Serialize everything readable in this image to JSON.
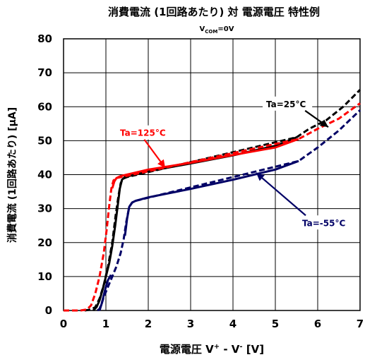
{
  "chart_data": {
    "type": "line",
    "title": "消費電流 (1回路あたり) 対 電源電圧 特性例",
    "subtitle": {
      "main": "V",
      "sub": "COM",
      "rest": "=0V"
    },
    "xlabel": {
      "prefix": "電源電圧 V",
      "sup1": "+",
      "mid": " - V",
      "sup2": "-",
      "suffix": " [V]"
    },
    "ylabel": "消費電流 (1回路あたり) [μA]",
    "xlim": [
      0,
      7
    ],
    "ylim": [
      0,
      80
    ],
    "xticks": [
      "0",
      "1",
      "2",
      "3",
      "4",
      "5",
      "6",
      "7"
    ],
    "yticks": [
      "0",
      "10",
      "20",
      "30",
      "40",
      "50",
      "60",
      "70",
      "80"
    ],
    "grid": true,
    "colors": {
      "ta25": "#000000",
      "ta125": "#ff0000",
      "ta_minus55": "#000066"
    },
    "annotations": [
      {
        "text": "Ta=125°C",
        "color": "#ff0000",
        "box_at": [
          1.25,
          54.5
        ],
        "arrow_to": [
          2.4,
          42
        ]
      },
      {
        "text": "Ta=25°C",
        "color": "#000000",
        "box_at": [
          4.7,
          63
        ],
        "arrow_to": [
          6.25,
          54
        ]
      },
      {
        "text": "Ta=-55°C",
        "color": "#000066",
        "box_at": [
          5.55,
          28
        ],
        "arrow_to": [
          4.55,
          40.5
        ]
      }
    ],
    "series": [
      {
        "key": "ta25",
        "solid": [
          [
            0.7,
            0
          ],
          [
            0.78,
            1
          ],
          [
            0.85,
            3
          ],
          [
            0.92,
            6
          ],
          [
            1.0,
            10
          ],
          [
            1.08,
            14
          ],
          [
            1.15,
            19
          ],
          [
            1.22,
            25
          ],
          [
            1.28,
            31
          ],
          [
            1.33,
            36
          ],
          [
            1.38,
            38.5
          ],
          [
            1.45,
            39.3
          ],
          [
            2.0,
            41.0
          ],
          [
            3.0,
            43.3
          ],
          [
            4.0,
            45.7
          ],
          [
            5.0,
            48.5
          ],
          [
            5.5,
            51
          ]
        ],
        "dashed": [
          [
            0.5,
            0
          ],
          [
            0.65,
            0.3
          ],
          [
            0.75,
            1
          ],
          [
            0.85,
            3.5
          ],
          [
            0.95,
            7.5
          ],
          [
            1.05,
            13
          ],
          [
            1.15,
            20
          ],
          [
            1.23,
            28
          ],
          [
            1.3,
            34
          ],
          [
            1.35,
            37.5
          ],
          [
            1.4,
            38.8
          ],
          [
            1.5,
            39.3
          ],
          [
            5.5,
            51
          ],
          [
            5.8,
            53.5
          ],
          [
            6.2,
            56
          ],
          [
            6.6,
            60
          ],
          [
            7.0,
            65
          ]
        ]
      },
      {
        "key": "ta125",
        "solid": [
          [
            1.15,
            36
          ],
          [
            1.2,
            38
          ],
          [
            1.25,
            39
          ],
          [
            1.35,
            39.6
          ],
          [
            2.0,
            41.5
          ],
          [
            3.0,
            43.5
          ],
          [
            4.0,
            45.8
          ],
          [
            5.0,
            48
          ],
          [
            5.55,
            50.5
          ]
        ],
        "dashed": [
          [
            0.0,
            0
          ],
          [
            0.4,
            0
          ],
          [
            0.55,
            0.3
          ],
          [
            0.65,
            1.5
          ],
          [
            0.75,
            5
          ],
          [
            0.85,
            10
          ],
          [
            0.95,
            17
          ],
          [
            1.02,
            24
          ],
          [
            1.08,
            31
          ],
          [
            1.13,
            36
          ],
          [
            1.18,
            38.3
          ],
          [
            1.25,
            39
          ],
          [
            5.55,
            50.5
          ],
          [
            6.0,
            53.5
          ],
          [
            6.5,
            56.5
          ],
          [
            7.0,
            61
          ]
        ]
      },
      {
        "key": "ta_minus55",
        "solid": [
          [
            0.85,
            0
          ],
          [
            0.9,
            2
          ],
          [
            0.95,
            4.5
          ],
          [
            1.0,
            7
          ],
          [
            1.05,
            9
          ],
          [
            1.12,
            10.5
          ]
        ],
        "solid2": [
          [
            1.45,
            22
          ],
          [
            1.5,
            27
          ],
          [
            1.55,
            30.5
          ],
          [
            1.62,
            31.8
          ],
          [
            1.7,
            32.3
          ],
          [
            2.0,
            33.3
          ],
          [
            3.0,
            35.8
          ],
          [
            4.0,
            38.5
          ],
          [
            5.0,
            41.5
          ],
          [
            5.55,
            44
          ]
        ],
        "dashed": [
          [
            0.8,
            0
          ],
          [
            0.85,
            0.5
          ],
          [
            0.9,
            2
          ],
          [
            0.95,
            4
          ],
          [
            1.05,
            7
          ],
          [
            1.15,
            10
          ],
          [
            1.25,
            13
          ],
          [
            1.35,
            17
          ],
          [
            1.42,
            21
          ],
          [
            1.48,
            26
          ],
          [
            1.55,
            30.5
          ],
          [
            1.62,
            31.8
          ],
          [
            1.7,
            32.3
          ],
          [
            5.55,
            44
          ],
          [
            6.0,
            48
          ],
          [
            6.5,
            53
          ],
          [
            7.0,
            59
          ]
        ]
      }
    ]
  }
}
